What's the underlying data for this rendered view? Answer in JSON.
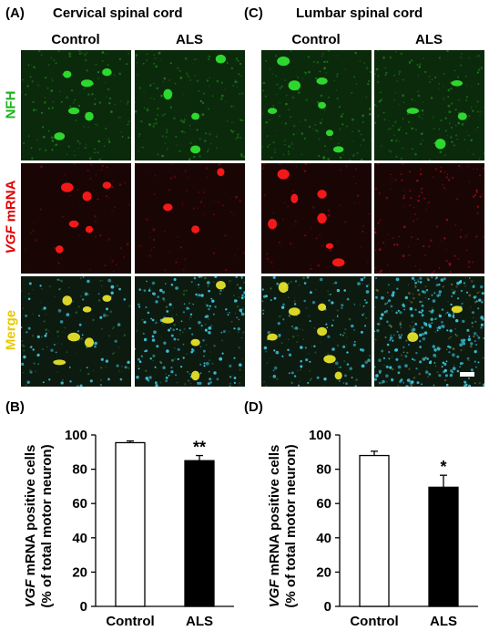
{
  "panels": {
    "A": {
      "letter": "(A)",
      "title": "Cervical spinal cord"
    },
    "C": {
      "letter": "(C)",
      "title": "Lumbar spinal cord"
    },
    "B": {
      "letter": "(B)"
    },
    "D": {
      "letter": "(D)"
    }
  },
  "column_headers": [
    "Control",
    "ALS"
  ],
  "row_labels": {
    "nfh": "NFH",
    "vgf_italic": "VGF",
    "vgf_rest": " mRNA",
    "merge": "Merge"
  },
  "colors": {
    "nfh": "#1db31d",
    "vgf": "#e00000",
    "merge": "#e8c800",
    "cyan_dapi": "#3cc6e0"
  },
  "chart_data": [
    {
      "panel": "B",
      "type": "bar",
      "categories": [
        "Control",
        "ALS"
      ],
      "values": [
        95.5,
        85.0
      ],
      "errors": [
        1.0,
        3.0
      ],
      "bar_fill": [
        "#ffffff",
        "#000000"
      ],
      "significance": [
        "",
        "**"
      ],
      "ylabel_italic": "VGF",
      "ylabel_rest": " mRNA positive cells",
      "ylabel_line2": "(% of total motor neuron)",
      "ylim": [
        0,
        100
      ],
      "yticks": [
        "0",
        "20",
        "40",
        "60",
        "80",
        "100"
      ]
    },
    {
      "panel": "D",
      "type": "bar",
      "categories": [
        "Control",
        "ALS"
      ],
      "values": [
        88.0,
        69.5
      ],
      "errors": [
        2.5,
        7.0
      ],
      "bar_fill": [
        "#ffffff",
        "#000000"
      ],
      "significance": [
        "",
        "*"
      ],
      "ylabel_italic": "VGF",
      "ylabel_rest": " mRNA positive cells",
      "ylabel_line2": "(% of total motor neuron)",
      "ylim": [
        0,
        100
      ],
      "yticks": [
        "0",
        "20",
        "40",
        "60",
        "80",
        "100"
      ]
    }
  ]
}
